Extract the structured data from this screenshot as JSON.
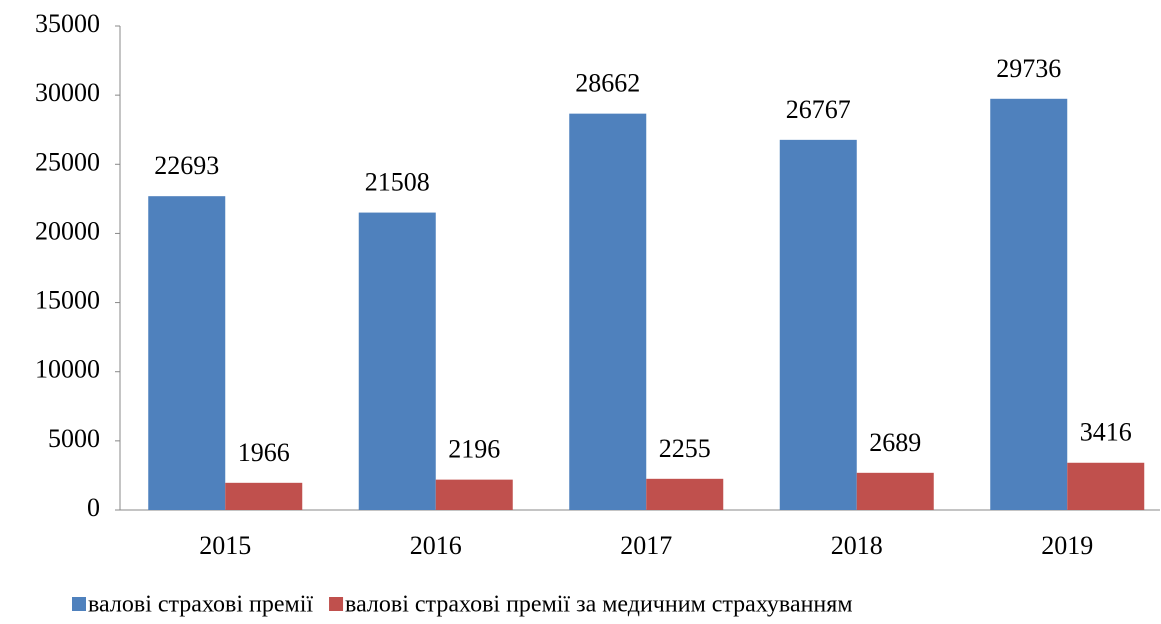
{
  "chart_data": {
    "type": "bar",
    "categories": [
      "2015",
      "2016",
      "2017",
      "2018",
      "2019"
    ],
    "series": [
      {
        "name": "валові страхові премії",
        "color": "#4f81bd",
        "values": [
          22693,
          21508,
          28662,
          26767,
          29736
        ]
      },
      {
        "name": "валові страхові премії за медичним страхуванням",
        "color": "#c0504d",
        "values": [
          1966,
          2196,
          2255,
          2689,
          3416
        ]
      }
    ],
    "ylim": [
      0,
      35000
    ],
    "yticks": [
      0,
      5000,
      10000,
      15000,
      20000,
      25000,
      30000,
      35000
    ],
    "grid": false,
    "legend": "bottom"
  }
}
